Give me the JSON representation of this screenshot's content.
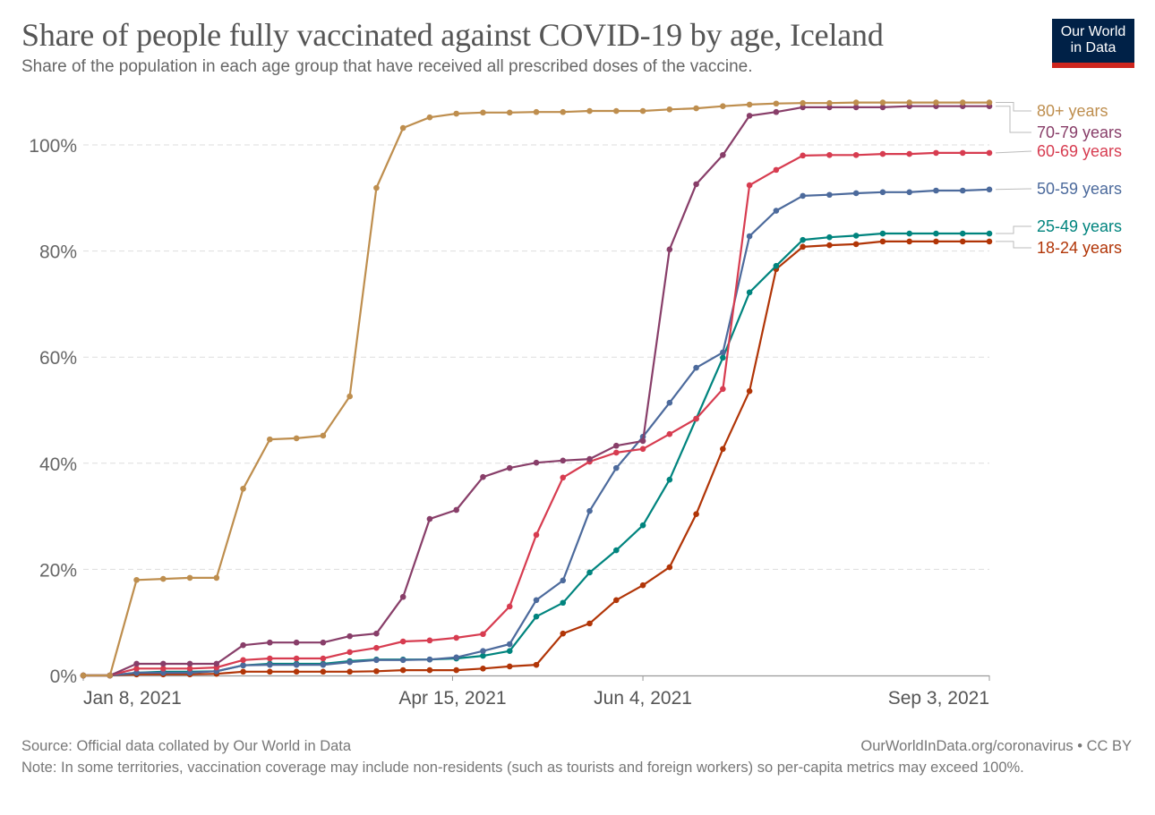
{
  "header": {
    "title": "Share of people fully vaccinated against COVID-19 by age, Iceland",
    "subtitle": "Share of the population in each age group that have received all prescribed doses of the vaccine.",
    "logo_line1": "Our World",
    "logo_line2": "in Data"
  },
  "footer": {
    "source": "Source: Official data collated by Our World in Data",
    "link": "OurWorldInData.org/coronavirus • CC BY",
    "note": "Note: In some territories, vaccination coverage may include non-residents (such as tourists and foreign workers) so per-capita metrics may exceed 100%."
  },
  "chart_data": {
    "type": "line",
    "title": "Share of people fully vaccinated against COVID-19 by age, Iceland",
    "subtitle": "Share of the population in each age group that have received all prescribed doses of the vaccine.",
    "xlabel": "",
    "ylabel": "",
    "x_start": "2021-01-08",
    "x_end": "2021-09-03",
    "x_interval_days": 7,
    "x_tick_labels": [
      {
        "label": "Jan 8, 2021",
        "week_index": 0
      },
      {
        "label": "Apr 15, 2021",
        "week_index": 13.857
      },
      {
        "label": "Jun 4, 2021",
        "week_index": 21
      },
      {
        "label": "Sep 3, 2021",
        "week_index": 34
      }
    ],
    "ylim": [
      0,
      108.5
    ],
    "y_ticks": [
      0,
      20,
      40,
      60,
      80,
      100
    ],
    "y_tick_labels": [
      "0%",
      "20%",
      "40%",
      "60%",
      "80%",
      "100%"
    ],
    "grid": "horizontal dashed",
    "legend": "right (line end labels)",
    "series": [
      {
        "name": "80+ years",
        "color": "#be8e4e",
        "values": [
          0,
          0,
          18.0,
          18.2,
          18.4,
          18.4,
          35.2,
          44.5,
          44.7,
          45.2,
          52.6,
          91.9,
          103.2,
          105.2,
          105.9,
          106.1,
          106.1,
          106.2,
          106.2,
          106.4,
          106.4,
          106.4,
          106.7,
          106.9,
          107.3,
          107.6,
          107.8,
          107.9,
          107.9,
          108.0,
          108.0,
          108.0,
          108.0,
          108.0,
          108.0
        ]
      },
      {
        "name": "70-79 years",
        "color": "#883e69",
        "values": [
          0,
          0,
          2.2,
          2.2,
          2.2,
          2.2,
          5.7,
          6.2,
          6.2,
          6.2,
          7.4,
          7.9,
          14.8,
          29.5,
          31.2,
          37.4,
          39.1,
          40.1,
          40.5,
          40.8,
          43.3,
          44.2,
          80.3,
          92.6,
          98.1,
          105.5,
          106.2,
          107.1,
          107.1,
          107.1,
          107.1,
          107.3,
          107.3,
          107.3,
          107.3
        ]
      },
      {
        "name": "60-69 years",
        "color": "#d73c50",
        "values": [
          0,
          0,
          1.3,
          1.3,
          1.3,
          1.5,
          2.9,
          3.2,
          3.2,
          3.2,
          4.4,
          5.2,
          6.4,
          6.6,
          7.1,
          7.8,
          13.0,
          26.5,
          37.3,
          40.3,
          42.0,
          42.7,
          45.5,
          48.4,
          54.0,
          92.4,
          95.3,
          98.0,
          98.1,
          98.1,
          98.3,
          98.3,
          98.5,
          98.5,
          98.5
        ]
      },
      {
        "name": "50-59 years",
        "color": "#4c6a9c",
        "values": [
          0,
          0,
          0.5,
          0.5,
          0.5,
          0.8,
          1.9,
          2.0,
          2.0,
          2.0,
          2.5,
          2.9,
          2.9,
          3.0,
          3.4,
          4.6,
          5.9,
          14.2,
          17.9,
          31.0,
          39.1,
          45.0,
          51.4,
          58.0,
          60.9,
          82.8,
          87.6,
          90.4,
          90.6,
          90.9,
          91.1,
          91.1,
          91.4,
          91.4,
          91.6
        ]
      },
      {
        "name": "25-49 years",
        "color": "#00847e",
        "values": [
          0,
          0,
          0.5,
          0.7,
          0.7,
          0.8,
          1.9,
          2.2,
          2.2,
          2.2,
          2.7,
          3.0,
          3.0,
          3.0,
          3.2,
          3.7,
          4.6,
          11.1,
          13.7,
          19.4,
          23.6,
          28.3,
          36.9,
          48.4,
          59.9,
          72.2,
          77.2,
          82.1,
          82.6,
          82.9,
          83.3,
          83.3,
          83.3,
          83.3,
          83.3
        ]
      },
      {
        "name": "18-24 years",
        "color": "#b13507",
        "values": [
          0,
          0,
          0.2,
          0.2,
          0.2,
          0.3,
          0.7,
          0.7,
          0.7,
          0.7,
          0.7,
          0.8,
          1.0,
          1.0,
          1.0,
          1.3,
          1.7,
          2.0,
          7.9,
          9.8,
          14.2,
          17.0,
          20.4,
          30.4,
          42.7,
          53.6,
          76.6,
          80.8,
          81.1,
          81.3,
          81.8,
          81.8,
          81.8,
          81.8,
          81.8
        ]
      }
    ]
  }
}
